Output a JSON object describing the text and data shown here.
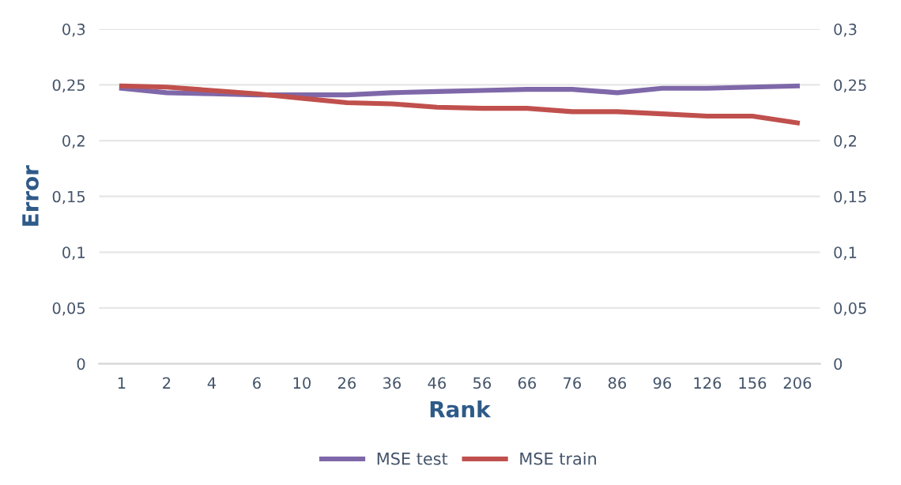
{
  "chart_data": {
    "type": "line",
    "xlabel": "Rank",
    "ylabel": "Error",
    "categories": [
      "1",
      "2",
      "4",
      "6",
      "10",
      "26",
      "36",
      "46",
      "56",
      "66",
      "76",
      "86",
      "96",
      "126",
      "156",
      "206"
    ],
    "series": [
      {
        "name": "MSE test",
        "color": "#7f68a9",
        "values": [
          0.247,
          0.243,
          0.242,
          0.241,
          0.241,
          0.241,
          0.243,
          0.244,
          0.245,
          0.246,
          0.246,
          0.243,
          0.247,
          0.247,
          0.248,
          0.249
        ]
      },
      {
        "name": "MSE train",
        "color": "#c0504d",
        "values": [
          0.249,
          0.248,
          0.245,
          0.242,
          0.238,
          0.234,
          0.233,
          0.23,
          0.229,
          0.229,
          0.226,
          0.226,
          0.224,
          0.222,
          0.222,
          0.216
        ]
      }
    ],
    "ylim": [
      0,
      0.3
    ],
    "yticks": [
      0,
      {
        "value": 0.05,
        "label": "0,05"
      },
      {
        "value": 0.1,
        "label": "0,1"
      },
      {
        "value": 0.15,
        "label": "0,15"
      },
      {
        "value": 0.2,
        "label": "0,2"
      },
      {
        "value": 0.25,
        "label": "0,25"
      },
      {
        "value": 0.3,
        "label": "0,3"
      }
    ],
    "y2lim": [
      0,
      0.3
    ],
    "y2ticks": [
      0,
      {
        "value": 0.05,
        "label": "0,05"
      },
      {
        "value": 0.1,
        "label": "0,1"
      },
      {
        "value": 0.15,
        "label": "0,15"
      },
      {
        "value": 0.2,
        "label": "0,2"
      },
      {
        "value": 0.25,
        "label": "0,25"
      },
      {
        "value": 0.3,
        "label": "0,3"
      }
    ],
    "grid": "y",
    "legend": "bottom",
    "marker": "none",
    "line_style": "solid"
  }
}
